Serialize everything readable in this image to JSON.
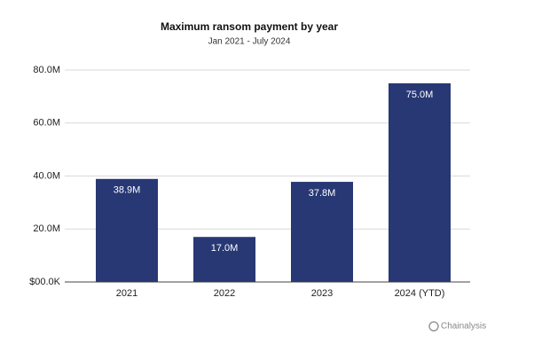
{
  "chart_data": {
    "type": "bar",
    "title": "Maximum ransom payment by year",
    "subtitle": "Jan 2021 - July 2024",
    "categories": [
      "2021",
      "2022",
      "2023",
      "2024 (YTD)"
    ],
    "values": [
      38.9,
      17.0,
      37.8,
      75.0
    ],
    "value_labels": [
      "38.9M",
      "17.0M",
      "37.8M",
      "75.0M"
    ],
    "color": "#283875",
    "ylim": [
      0,
      80
    ],
    "yticks": [
      {
        "value": 0,
        "label": "$00.0K"
      },
      {
        "value": 20,
        "label": "20.0M"
      },
      {
        "value": 40,
        "label": "40.0M"
      },
      {
        "value": 60,
        "label": "60.0M"
      },
      {
        "value": 80,
        "label": "80.0M"
      }
    ],
    "grid": true,
    "watermark": "Chainalysis"
  }
}
